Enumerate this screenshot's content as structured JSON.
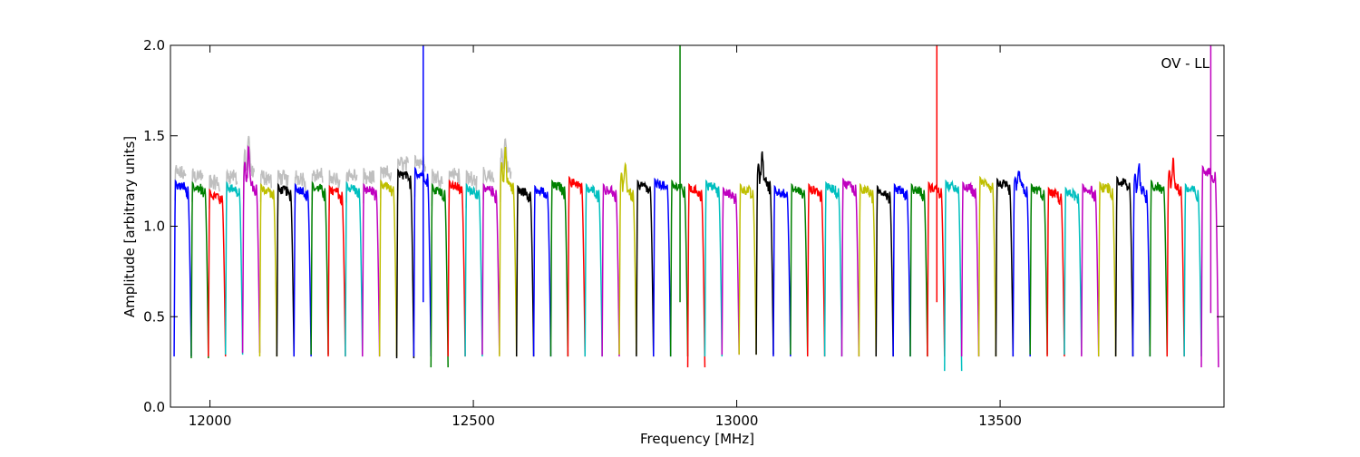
{
  "chart_data": {
    "type": "line",
    "title": "",
    "xlabel": "Frequency [MHz]",
    "ylabel": "Amplitude [arbitrary units]",
    "annotation": "OV - LL",
    "xlim": [
      11925,
      13925
    ],
    "ylim": [
      0.0,
      2.0
    ],
    "x_ticks": [
      12000,
      12500,
      13000,
      13500
    ],
    "x_tick_labels": [
      "12000",
      "12500",
      "13000",
      "13500"
    ],
    "y_ticks": [
      0.0,
      0.5,
      1.0,
      1.5,
      2.0
    ],
    "y_tick_labels": [
      "0.0",
      "0.5",
      "1.0",
      "1.5",
      "2.0"
    ],
    "grid": false,
    "legend": "none",
    "colors": [
      "#0000ff",
      "#008000",
      "#ff0000",
      "#00bfbf",
      "#bf00bf",
      "#bfbf00",
      "#000000"
    ],
    "reference_color": "#bfbfbf",
    "channel_spacing_mhz": 32.5,
    "channel_start_mhz": 11932,
    "channels": [
      {
        "start": 11932,
        "level": 1.22,
        "min": 0.28
      },
      {
        "start": 11964.5,
        "level": 1.21,
        "min": 0.27
      },
      {
        "start": 11997,
        "level": 1.17,
        "min": 0.28
      },
      {
        "start": 12029.5,
        "level": 1.21,
        "min": 0.29
      },
      {
        "start": 12062,
        "level": 1.23,
        "min": 0.3,
        "peak": 1.44
      },
      {
        "start": 12094.5,
        "level": 1.2,
        "min": 0.28
      },
      {
        "start": 12127,
        "level": 1.2,
        "min": 0.28
      },
      {
        "start": 12159.5,
        "level": 1.2,
        "min": 0.28
      },
      {
        "start": 12192,
        "level": 1.21,
        "min": 0.29
      },
      {
        "start": 12224.5,
        "level": 1.19,
        "min": 0.28
      },
      {
        "start": 12257,
        "level": 1.21,
        "min": 0.28
      },
      {
        "start": 12289.5,
        "level": 1.2,
        "min": 0.28
      },
      {
        "start": 12322,
        "level": 1.22,
        "min": 0.28
      },
      {
        "start": 12354.5,
        "level": 1.28,
        "min": 0.27
      },
      {
        "start": 12387,
        "level": 1.29,
        "min": 0.28,
        "spike": 2.0
      },
      {
        "start": 12419.5,
        "level": 1.2,
        "min": 0.22
      },
      {
        "start": 12452,
        "level": 1.22,
        "min": 0.28
      },
      {
        "start": 12484.5,
        "level": 1.2,
        "min": 0.28
      },
      {
        "start": 12517,
        "level": 1.2,
        "min": 0.29
      },
      {
        "start": 12549.5,
        "level": 1.24,
        "min": 0.28,
        "peak": 1.43
      },
      {
        "start": 12582,
        "level": 1.19,
        "min": 0.28
      },
      {
        "start": 12614.5,
        "level": 1.19,
        "min": 0.28
      },
      {
        "start": 12647,
        "level": 1.22,
        "min": 0.28
      },
      {
        "start": 12679.5,
        "level": 1.24,
        "min": 0.28
      },
      {
        "start": 12712,
        "level": 1.2,
        "min": 0.28
      },
      {
        "start": 12744.5,
        "level": 1.2,
        "min": 0.28
      },
      {
        "start": 12777,
        "level": 1.2,
        "min": 0.29,
        "peak": 1.36
      },
      {
        "start": 12809.5,
        "level": 1.22,
        "min": 0.28
      },
      {
        "start": 12842,
        "level": 1.23,
        "min": 0.28
      },
      {
        "start": 12874.5,
        "level": 1.22,
        "min": 0.28,
        "spike": 2.0
      },
      {
        "start": 12907,
        "level": 1.2,
        "min": 0.22
      },
      {
        "start": 12939.5,
        "level": 1.22,
        "min": 0.28
      },
      {
        "start": 12972,
        "level": 1.18,
        "min": 0.29
      },
      {
        "start": 13004.5,
        "level": 1.2,
        "min": 0.29
      },
      {
        "start": 13037,
        "level": 1.25,
        "min": 0.29,
        "peak": 1.41
      },
      {
        "start": 13069.5,
        "level": 1.19,
        "min": 0.28
      },
      {
        "start": 13102,
        "level": 1.2,
        "min": 0.29
      },
      {
        "start": 13134.5,
        "level": 1.2,
        "min": 0.28
      },
      {
        "start": 13167,
        "level": 1.21,
        "min": 0.28
      },
      {
        "start": 13199.5,
        "level": 1.23,
        "min": 0.28
      },
      {
        "start": 13232,
        "level": 1.2,
        "min": 0.28
      },
      {
        "start": 13264.5,
        "level": 1.19,
        "min": 0.28
      },
      {
        "start": 13297,
        "level": 1.2,
        "min": 0.28
      },
      {
        "start": 13329.5,
        "level": 1.2,
        "min": 0.28
      },
      {
        "start": 13362,
        "level": 1.21,
        "min": 0.28,
        "spike": 2.0
      },
      {
        "start": 13394.5,
        "level": 1.22,
        "min": 0.2
      },
      {
        "start": 13427,
        "level": 1.21,
        "min": 0.28
      },
      {
        "start": 13459.5,
        "level": 1.24,
        "min": 0.28
      },
      {
        "start": 13492,
        "level": 1.23,
        "min": 0.28
      },
      {
        "start": 13524.5,
        "level": 1.22,
        "min": 0.28,
        "peak": 1.3
      },
      {
        "start": 13557,
        "level": 1.2,
        "min": 0.29
      },
      {
        "start": 13589.5,
        "level": 1.18,
        "min": 0.28
      },
      {
        "start": 13622,
        "level": 1.18,
        "min": 0.29
      },
      {
        "start": 13654.5,
        "level": 1.2,
        "min": 0.28
      },
      {
        "start": 13687,
        "level": 1.21,
        "min": 0.28
      },
      {
        "start": 13719.5,
        "level": 1.24,
        "min": 0.28
      },
      {
        "start": 13752,
        "level": 1.2,
        "min": 0.28,
        "peak": 1.35
      },
      {
        "start": 13784.5,
        "level": 1.22,
        "min": 0.28
      },
      {
        "start": 13817,
        "level": 1.22,
        "min": 0.28,
        "peak": 1.37
      },
      {
        "start": 13849.5,
        "level": 1.2,
        "min": 0.28
      },
      {
        "start": 13882,
        "level": 1.3,
        "min": 0.22,
        "spike": 2.0
      }
    ]
  }
}
